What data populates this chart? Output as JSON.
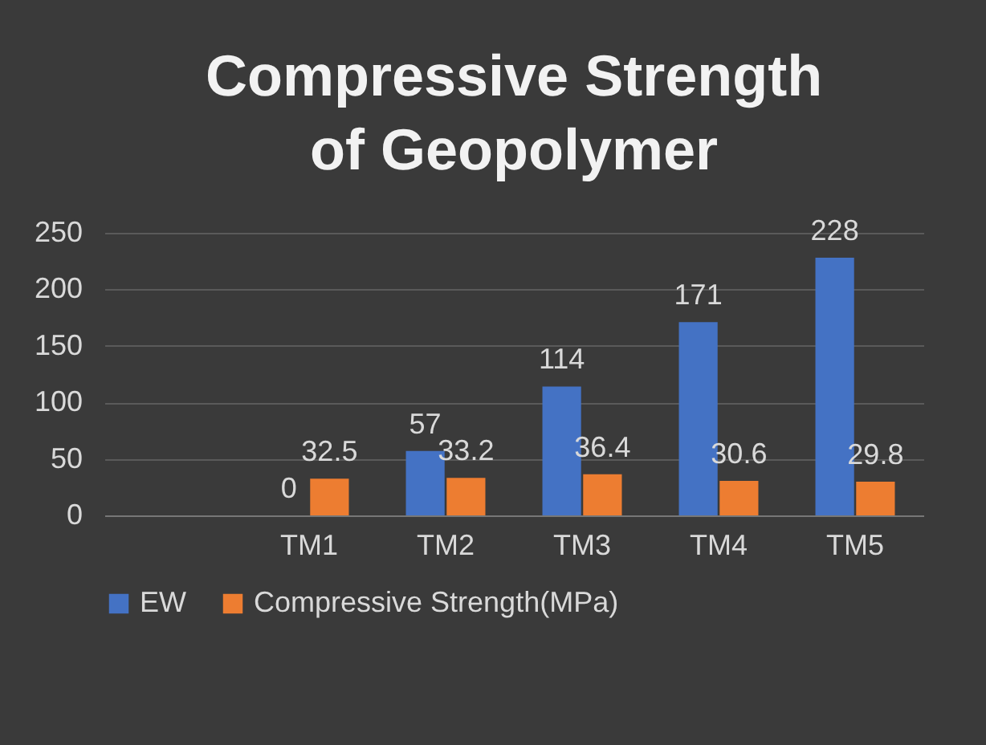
{
  "chart_data": {
    "type": "bar",
    "title": "Compressive Strength of Geopolymer",
    "categories": [
      null,
      "TM1",
      "TM2",
      "TM3",
      "TM4",
      "TM5"
    ],
    "series": [
      {
        "name": "EW",
        "color": "#4472c4",
        "values": [
          null,
          0,
          57,
          114,
          171,
          228
        ]
      },
      {
        "name": "Compressive Strength(MPa)",
        "color": "#ed7d31",
        "values": [
          null,
          32.5,
          33.2,
          36.4,
          30.6,
          29.8
        ]
      }
    ],
    "ylim": [
      0,
      250
    ],
    "yticks": [
      0,
      50,
      100,
      150,
      200,
      250
    ],
    "grid": "y",
    "legend": "bottom",
    "data_labels": true
  }
}
